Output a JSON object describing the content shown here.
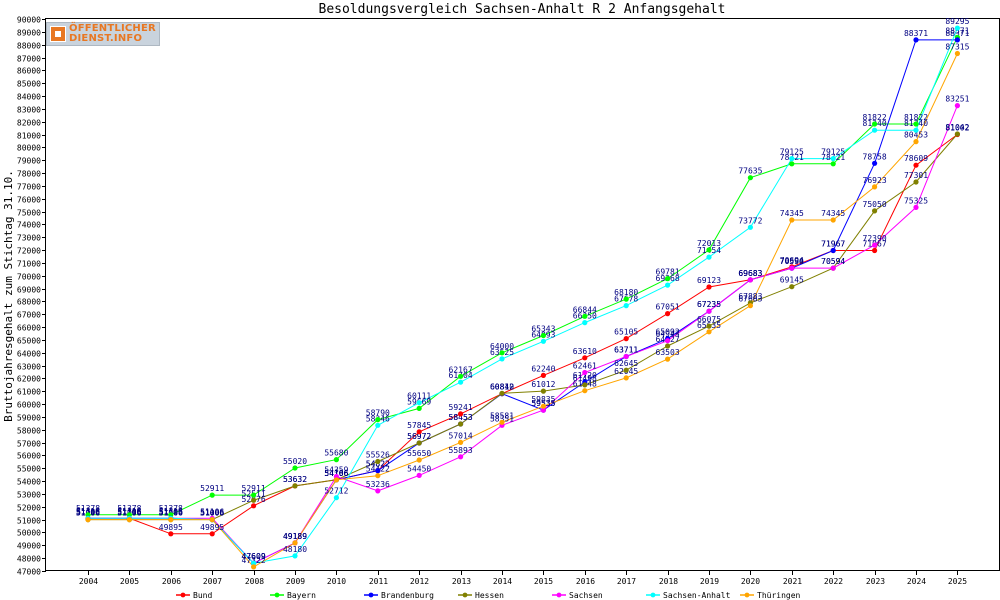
{
  "logo": {
    "line1": "ÖFFENTLICHER",
    "line2": "DIENST.INFO"
  },
  "chart_data": {
    "type": "line",
    "title": "Besoldungsvergleich Sachsen-Anhalt R 2 Anfangsgehalt",
    "xlabel": "",
    "ylabel": "Bruttojahresgehalt zum Stichtag 31.10.",
    "ylim": [
      47000,
      90000
    ],
    "ytick_step": 1000,
    "grid": false,
    "legend_position": "bottom",
    "x": [
      2004,
      2005,
      2006,
      2007,
      2008,
      2009,
      2010,
      2011,
      2012,
      2013,
      2014,
      2015,
      2016,
      2017,
      2018,
      2019,
      2020,
      2021,
      2022,
      2023,
      2024,
      2025
    ],
    "series": [
      {
        "name": "Bund",
        "color": "#ff0000",
        "values": [
          51106,
          51106,
          49895,
          49895,
          52076,
          53632,
          54106,
          54822,
          57845,
          59241,
          60812,
          62240,
          63610,
          65105,
          67051,
          69123,
          69683,
          70694,
          71967,
          71967,
          78609,
          81002
        ]
      },
      {
        "name": "Bayern",
        "color": "#00ff00",
        "values": [
          51378,
          51378,
          51378,
          52911,
          52911,
          55020,
          55680,
          58790,
          59669,
          62167,
          64000,
          65343,
          66844,
          68180,
          69781,
          72013,
          77635,
          78721,
          78721,
          81822,
          81822,
          88571
        ]
      },
      {
        "name": "Brandenburg",
        "color": "#0000ff",
        "values": [
          51116,
          51116,
          51116,
          51006,
          47609,
          49189,
          54106,
          54822,
          56972,
          58453,
          60812,
          59535,
          61720,
          63711,
          65092,
          67235,
          69683,
          70590,
          71967,
          78758,
          88371,
          88371
        ]
      },
      {
        "name": "Hessen",
        "color": "#808000",
        "values": [
          51006,
          51006,
          51006,
          51006,
          52511,
          53632,
          54106,
          55526,
          56972,
          58453,
          60840,
          61012,
          61498,
          62645,
          64527,
          66075,
          67883,
          69145,
          70594,
          75050,
          77301,
          81042
        ]
      },
      {
        "name": "Sachsen",
        "color": "#ff00ff",
        "values": [
          51106,
          51106,
          51106,
          51106,
          47609,
          49189,
          54359,
          53236,
          54450,
          55893,
          58351,
          59535,
          62461,
          63711,
          64943,
          67235,
          69683,
          70594,
          70594,
          72390,
          75325,
          83251
        ]
      },
      {
        "name": "Sachsen-Anhalt",
        "color": "#00ffff",
        "values": [
          51106,
          51106,
          51106,
          51006,
          47609,
          48180,
          52712,
          58346,
          60111,
          61704,
          63525,
          64893,
          66350,
          67678,
          69268,
          71454,
          73772,
          79125,
          79125,
          81340,
          81340,
          89295
        ]
      },
      {
        "name": "Thüringen",
        "color": "#ffa500",
        "values": [
          51006,
          51006,
          51006,
          51006,
          47322,
          49189,
          54106,
          54422,
          55650,
          57014,
          58581,
          59835,
          61048,
          62045,
          63503,
          65635,
          67663,
          74345,
          74345,
          76923,
          80453,
          87315
        ]
      }
    ]
  }
}
